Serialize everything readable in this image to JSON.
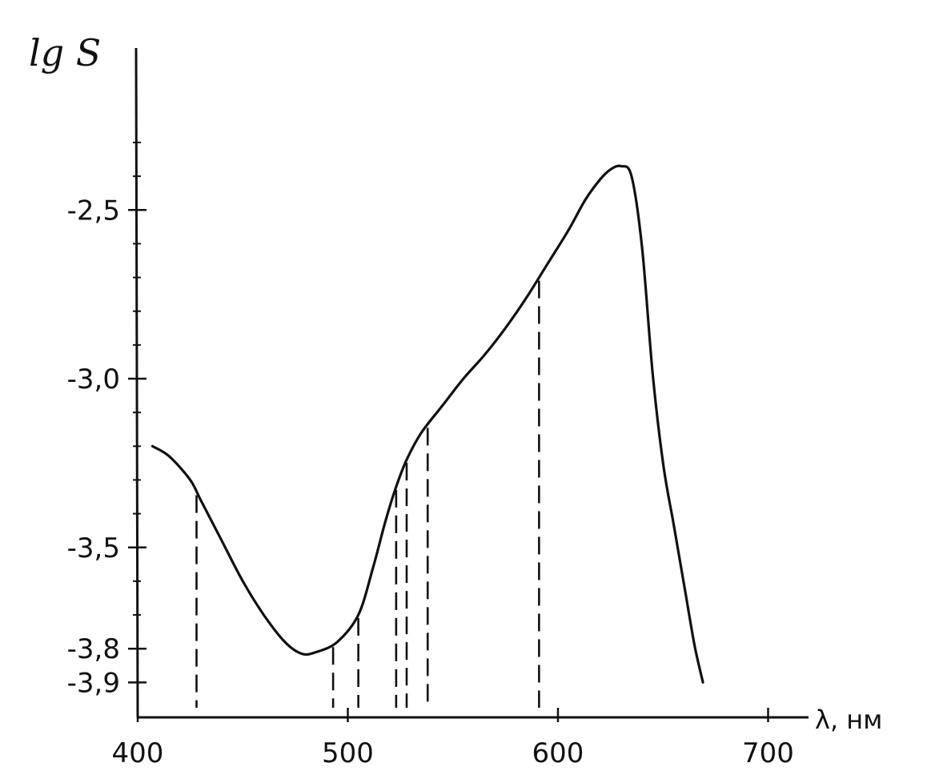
{
  "chart_data": {
    "type": "line",
    "xlabel": "λ, нм",
    "ylabel": "lg S",
    "x_ticks": [
      400,
      500,
      600,
      700
    ],
    "y_ticks": [
      -2.5,
      -3.0,
      -3.5,
      -3.8,
      -3.9
    ],
    "x_tick_labels": [
      "400",
      "500",
      "600",
      "700"
    ],
    "y_tick_labels": [
      "-2,5",
      "-3,0",
      "-3,5",
      "-3,8",
      "-3,9"
    ],
    "xlim": [
      400,
      720
    ],
    "ylim": [
      -4.0,
      -2.0
    ],
    "grid": false,
    "series": [
      {
        "x": [
          407,
          415,
          425,
          430,
          440,
          450,
          460,
          470,
          478,
          485,
          495,
          505,
          512,
          518,
          523,
          528,
          535,
          545,
          555,
          565,
          575,
          585,
          595,
          605,
          613,
          620,
          625,
          630,
          635,
          640,
          645,
          650,
          655,
          660,
          665,
          669
        ],
        "y": [
          -3.2,
          -3.23,
          -3.3,
          -3.36,
          -3.48,
          -3.6,
          -3.7,
          -3.78,
          -3.815,
          -3.81,
          -3.78,
          -3.7,
          -3.56,
          -3.42,
          -3.32,
          -3.24,
          -3.16,
          -3.08,
          -3.0,
          -2.93,
          -2.85,
          -2.76,
          -2.66,
          -2.56,
          -2.47,
          -2.41,
          -2.38,
          -2.37,
          -2.4,
          -2.61,
          -2.98,
          -3.25,
          -3.43,
          -3.61,
          -3.79,
          -3.9
        ]
      }
    ],
    "dashed_drop_lines_x": [
      428,
      493,
      505,
      523,
      528,
      538,
      591
    ]
  }
}
